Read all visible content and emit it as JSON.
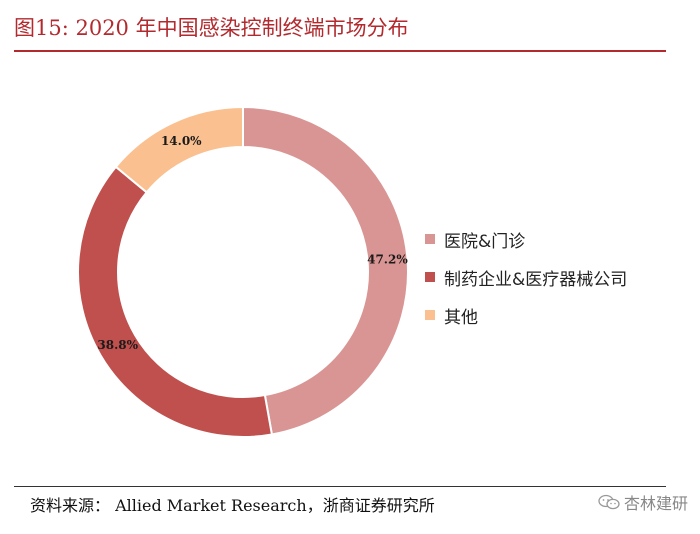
{
  "header": {
    "title": "图15:    2020 年中国感染控制终端市场分布"
  },
  "footer": {
    "source": "资料来源：  Allied Market Research，浙商证券研究所"
  },
  "watermark": {
    "text": "杏林建研",
    "icon": "wechat-icon"
  },
  "colors": {
    "accent": "#b22a2e"
  },
  "chart_data": {
    "type": "pie",
    "donut": true,
    "categories": [
      "医院&门诊",
      "制药企业&医疗器械公司",
      "其他"
    ],
    "values": [
      47.2,
      38.8,
      14.0
    ],
    "data_labels": [
      "47.2%",
      "38.8%",
      "14.0%"
    ],
    "colors": [
      "#d99593",
      "#c0504d",
      "#fac090"
    ],
    "legend": "right"
  }
}
